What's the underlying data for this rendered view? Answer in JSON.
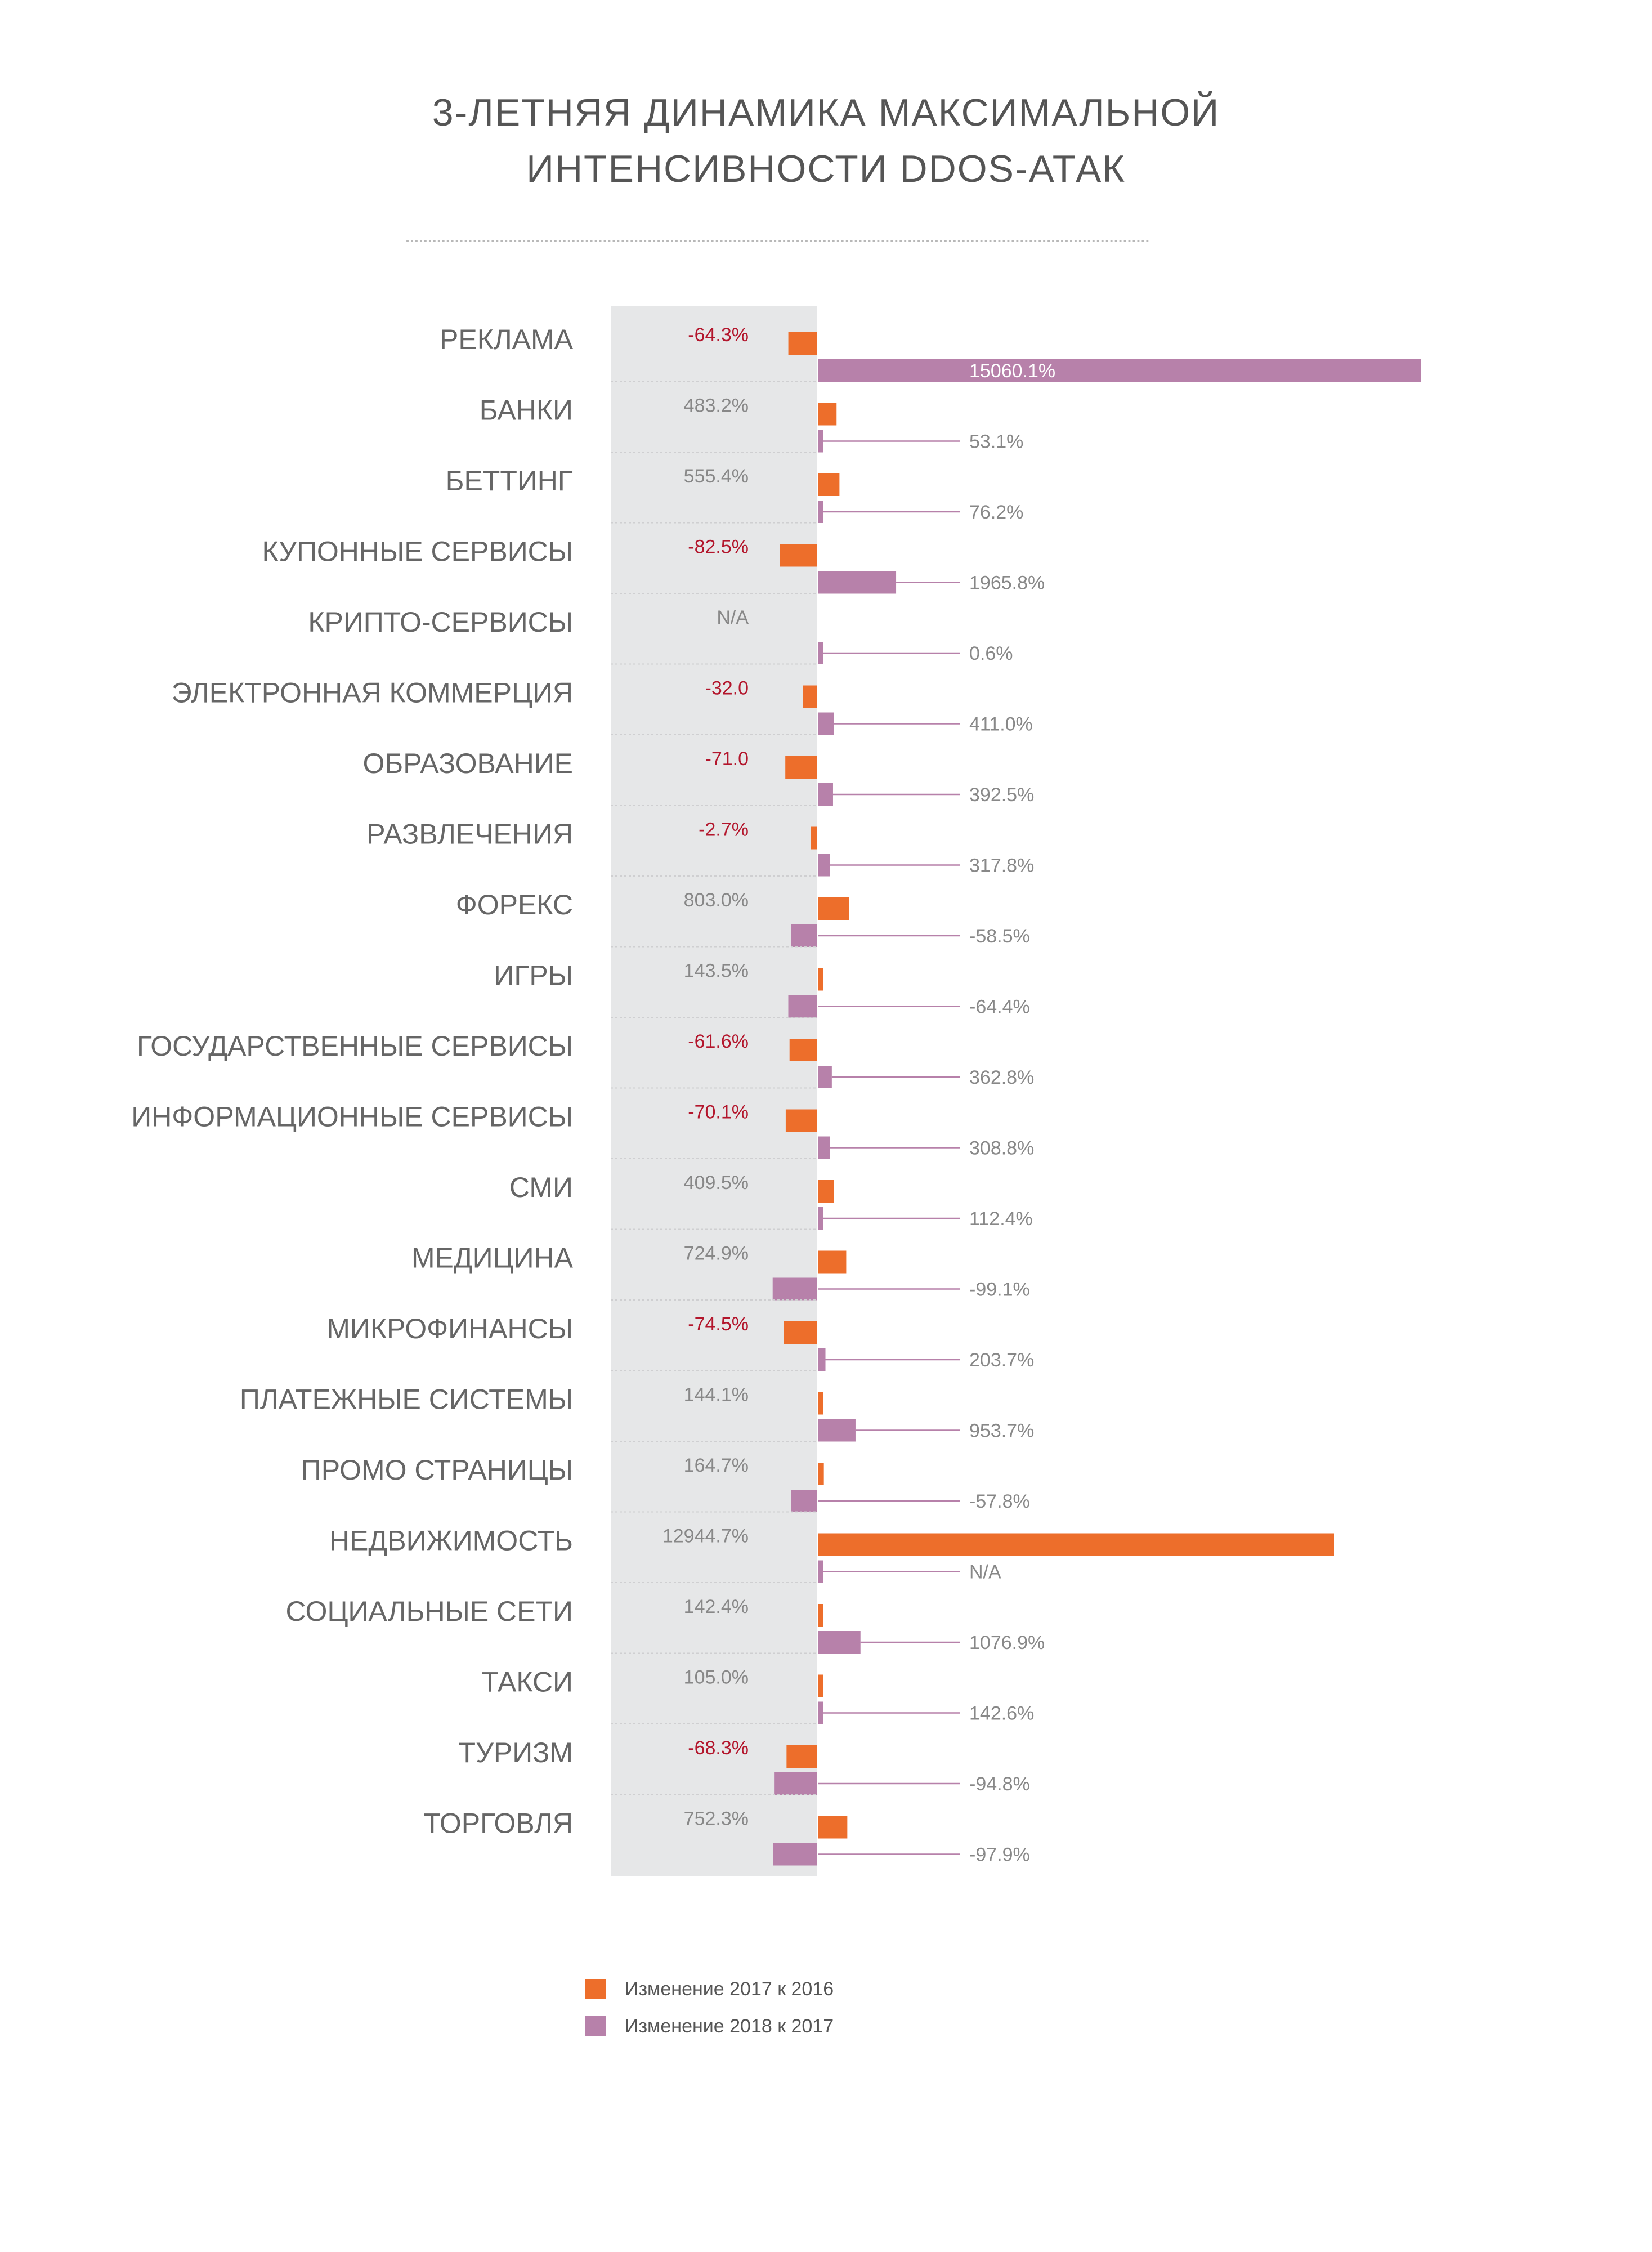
{
  "title_lines": [
    "3-ЛЕТНЯЯ ДИНАМИКА МАКСИМАЛЬНОЙ",
    "ИНТЕНСИВНОСТИ DDOS-АТАК"
  ],
  "colors": {
    "series_2017": "#ed6e2b",
    "series_2018": "#b781aa",
    "negative_label": "#b3162c",
    "positive_label": "#888888",
    "panel": "#e6e7e8",
    "category_label": "#666666"
  },
  "legend": [
    {
      "label": "Изменение 2017 к 2016",
      "color": "#ed6e2b"
    },
    {
      "label": "Изменение 2018 к 2017",
      "color": "#b781aa"
    }
  ],
  "chart_data": {
    "type": "bar",
    "orientation": "horizontal",
    "title": "3-ЛЕТНЯЯ ДИНАМИКА МАКСИМАЛЬНОЙ ИНТЕНСИВНОСТИ DDOS-АТАК",
    "unit": "%",
    "categories": [
      "РЕКЛАМА",
      "БАНКИ",
      "БЕТТИНГ",
      "КУПОННЫЕ СЕРВИСЫ",
      "КРИПТО-СЕРВИСЫ",
      "ЭЛЕКТРОННАЯ КОММЕРЦИЯ",
      "ОБРАЗОВАНИЕ",
      "РАЗВЛЕЧЕНИЯ",
      "ФОРЕКС",
      "ИГРЫ",
      "ГОСУДАРСТВЕННЫЕ СЕРВИСЫ",
      "ИНФОРМАЦИОННЫЕ СЕРВИСЫ",
      "СМИ",
      "МЕДИЦИНА",
      "МИКРОФИНАНСЫ",
      "ПЛАТЕЖНЫЕ СИСТЕМЫ",
      "ПРОМО СТРАНИЦЫ",
      "НЕДВИЖИМОСТЬ",
      "СОЦИАЛЬНЫЕ СЕТИ",
      "ТАКСИ",
      "ТУРИЗМ",
      "ТОРГОВЛЯ"
    ],
    "series": [
      {
        "name": "Изменение 2017 к 2016",
        "values": [
          -64.3,
          483.2,
          555.4,
          -82.5,
          null,
          -32.0,
          -71.0,
          -2.7,
          803.0,
          143.5,
          -61.6,
          -70.1,
          409.5,
          724.9,
          -74.5,
          144.1,
          164.7,
          12944.7,
          142.4,
          105.0,
          -68.3,
          752.3
        ],
        "labels": [
          "-64.3%",
          "483.2%",
          "555.4%",
          "-82.5%",
          "N/A",
          "-32.0",
          "-71.0",
          "-2.7%",
          "803.0%",
          "143.5%",
          "-61.6%",
          "-70.1%",
          "409.5%",
          "724.9%",
          "-74.5%",
          "144.1%",
          "164.7%",
          "12944.7%",
          "142.4%",
          "105.0%",
          "-68.3%",
          "752.3%"
        ]
      },
      {
        "name": "Изменение 2018 к 2017",
        "values": [
          15060.1,
          53.1,
          76.2,
          1965.8,
          0.6,
          411.0,
          392.5,
          317.8,
          -58.5,
          -64.4,
          362.8,
          308.8,
          112.4,
          -99.1,
          203.7,
          953.7,
          -57.8,
          null,
          1076.9,
          142.6,
          -94.8,
          -97.9
        ],
        "labels": [
          "15060.1%",
          "53.1%",
          "76.2%",
          "1965.8%",
          "0.6%",
          "411.0%",
          "392.5%",
          "317.8%",
          "-58.5%",
          "-64.4%",
          "362.8%",
          "308.8%",
          "112.4%",
          "-99.1%",
          "203.7%",
          "953.7%",
          "-57.8%",
          "N/A",
          "1076.9%",
          "142.6%",
          "-94.8%",
          "-97.9%"
        ]
      }
    ]
  }
}
